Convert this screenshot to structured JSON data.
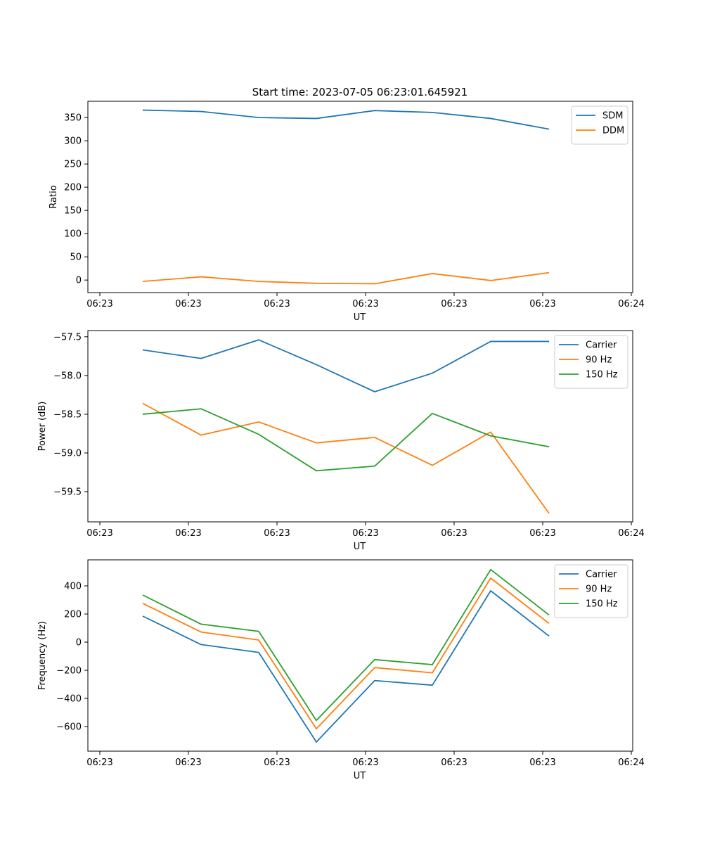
{
  "figure_title": "Start time: 2023-07-05 06:23:01.645921",
  "chart_data": [
    {
      "type": "line",
      "xlabel": "UT",
      "ylabel": "Ratio",
      "x_tick_labels": [
        "06:23",
        "06:23",
        "06:23",
        "06:23",
        "06:23",
        "06:23",
        "06:24"
      ],
      "ylim": [
        -27,
        385
      ],
      "y_ticks": [
        0,
        50,
        100,
        150,
        200,
        250,
        300,
        350
      ],
      "y_tick_labels": [
        "0",
        "50",
        "100",
        "150",
        "200",
        "250",
        "300",
        "350"
      ],
      "legend_position": "top-right",
      "series": [
        {
          "name": "SDM",
          "color": "#1f77b4",
          "values": [
            366,
            363,
            350,
            348,
            365,
            361,
            348,
            325
          ]
        },
        {
          "name": "DDM",
          "color": "#ff7f0e",
          "values": [
            -3,
            7,
            -3,
            -7,
            -8,
            14,
            -1,
            16
          ]
        }
      ]
    },
    {
      "type": "line",
      "xlabel": "UT",
      "ylabel": "Power (dB)",
      "x_tick_labels": [
        "06:23",
        "06:23",
        "06:23",
        "06:23",
        "06:23",
        "06:23",
        "06:24"
      ],
      "ylim": [
        -59.89,
        -57.42
      ],
      "y_ticks": [
        -59.5,
        -59.0,
        -58.5,
        -58.0,
        -57.5
      ],
      "y_tick_labels": [
        "−59.5",
        "−59.0",
        "−58.5",
        "−58.0",
        "−57.5"
      ],
      "legend_position": "top-right",
      "series": [
        {
          "name": "Carrier",
          "color": "#1f77b4",
          "values": [
            -57.67,
            -57.78,
            -57.54,
            -57.86,
            -58.21,
            -57.97,
            -57.56,
            -57.56
          ]
        },
        {
          "name": "90 Hz",
          "color": "#ff7f0e",
          "values": [
            -58.36,
            -58.77,
            -58.6,
            -58.87,
            -58.8,
            -59.16,
            -58.73,
            -59.78
          ]
        },
        {
          "name": "150 Hz",
          "color": "#2ca02c",
          "values": [
            -58.5,
            -58.43,
            -58.76,
            -59.23,
            -59.17,
            -58.49,
            -58.78,
            -58.92
          ]
        }
      ]
    },
    {
      "type": "line",
      "xlabel": "UT",
      "ylabel": "Frequency (Hz)",
      "x_tick_labels": [
        "06:23",
        "06:23",
        "06:23",
        "06:23",
        "06:23",
        "06:23",
        "06:24"
      ],
      "ylim": [
        -775,
        585
      ],
      "y_ticks": [
        -600,
        -400,
        -200,
        0,
        200,
        400
      ],
      "y_tick_labels": [
        "−600",
        "−400",
        "−200",
        "0",
        "200",
        "400"
      ],
      "legend_position": "top-right",
      "series": [
        {
          "name": "Carrier",
          "color": "#1f77b4",
          "values": [
            185,
            -17,
            -73,
            -710,
            -273,
            -306,
            365,
            43
          ]
        },
        {
          "name": "90 Hz",
          "color": "#ff7f0e",
          "values": [
            276,
            72,
            15,
            -616,
            -181,
            -218,
            455,
            133
          ]
        },
        {
          "name": "150 Hz",
          "color": "#2ca02c",
          "values": [
            335,
            128,
            77,
            -557,
            -124,
            -160,
            516,
            193
          ]
        }
      ]
    }
  ]
}
